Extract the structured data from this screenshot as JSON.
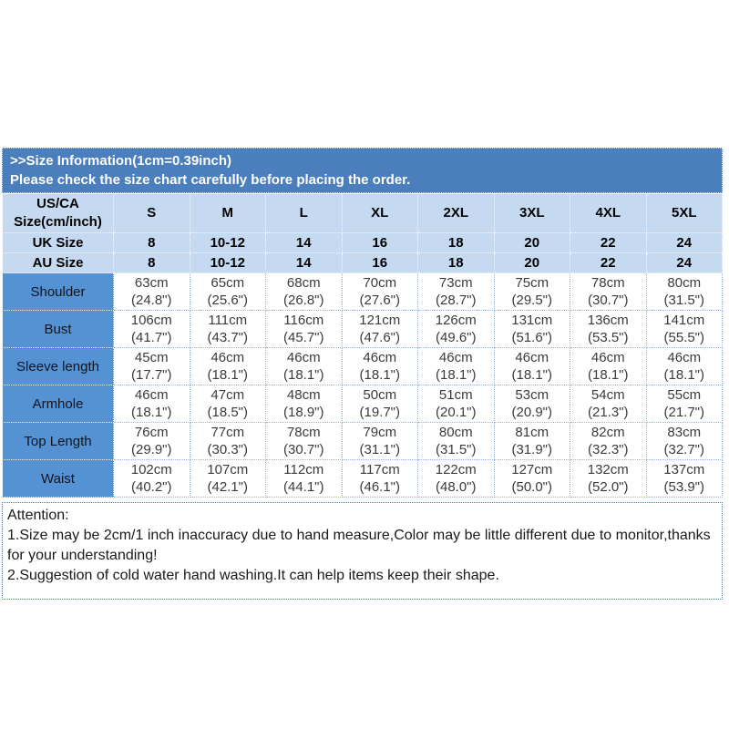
{
  "title": {
    "line1": ">>Size Information(1cm=0.39inch)",
    "line2": "Please check the size chart carefully before placing the order."
  },
  "table": {
    "corner_line1": "US/CA",
    "corner_line2": "Size(cm/inch)",
    "size_headers": [
      "S",
      "M",
      "L",
      "XL",
      "2XL",
      "3XL",
      "4XL",
      "5XL"
    ],
    "uk_label": "UK Size",
    "uk_values": [
      "8",
      "10-12",
      "14",
      "16",
      "18",
      "20",
      "22",
      "24"
    ],
    "au_label": "AU Size",
    "au_values": [
      "8",
      "10-12",
      "14",
      "16",
      "18",
      "20",
      "22",
      "24"
    ],
    "measurement_rows": [
      {
        "label": "Shoulder",
        "cm": [
          "63cm",
          "65cm",
          "68cm",
          "70cm",
          "73cm",
          "75cm",
          "78cm",
          "80cm"
        ],
        "inch": [
          "(24.8\")",
          "(25.6\")",
          "(26.8\")",
          "(27.6\")",
          "(28.7\")",
          "(29.5\")",
          "(30.7\")",
          "(31.5\")"
        ]
      },
      {
        "label": "Bust",
        "cm": [
          "106cm",
          "111cm",
          "116cm",
          "121cm",
          "126cm",
          "131cm",
          "136cm",
          "141cm"
        ],
        "inch": [
          "(41.7\")",
          "(43.7\")",
          "(45.7\")",
          "(47.6\")",
          "(49.6\")",
          "(51.6\")",
          "(53.5\")",
          "(55.5\")"
        ]
      },
      {
        "label": "Sleeve length",
        "cm": [
          "45cm",
          "46cm",
          "46cm",
          "46cm",
          "46cm",
          "46cm",
          "46cm",
          "46cm"
        ],
        "inch": [
          "(17.7\")",
          "(18.1\")",
          "(18.1\")",
          "(18.1\")",
          "(18.1\")",
          "(18.1\")",
          "(18.1\")",
          "(18.1\")"
        ]
      },
      {
        "label": "Armhole",
        "cm": [
          "46cm",
          "47cm",
          "48cm",
          "50cm",
          "51cm",
          "53cm",
          "54cm",
          "55cm"
        ],
        "inch": [
          "(18.1\")",
          "(18.5\")",
          "(18.9\")",
          "(19.7\")",
          "(20.1\")",
          "(20.9\")",
          "(21.3\")",
          "(21.7\")"
        ]
      },
      {
        "label": "Top Length",
        "cm": [
          "76cm",
          "77cm",
          "78cm",
          "79cm",
          "80cm",
          "81cm",
          "82cm",
          "83cm"
        ],
        "inch": [
          "(29.9\")",
          "(30.3\")",
          "(30.7\")",
          "(31.1\")",
          "(31.5\")",
          "(31.9\")",
          "(32.3\")",
          "(32.7\")"
        ]
      },
      {
        "label": "Waist",
        "cm": [
          "102cm",
          "107cm",
          "112cm",
          "117cm",
          "122cm",
          "127cm",
          "132cm",
          "137cm"
        ],
        "inch": [
          "(40.2\")",
          "(42.1\")",
          "(44.1\")",
          "(46.1\")",
          "(48.0\")",
          "(50.0\")",
          "(52.0\")",
          "(53.9\")"
        ]
      }
    ]
  },
  "attention": {
    "heading": "Attention:",
    "line1": "1.Size may be 2cm/1 inch inaccuracy due to hand measure,Color may be little different due to monitor,thanks for your understanding!",
    "line2": "2.Suggestion of cold water hand washing.It can help items keep their shape."
  },
  "colors": {
    "title_band_bg": "#4a7ebc",
    "header_cell_bg": "#c5d9f1",
    "row_label_bg": "#5592d4",
    "data_cell_bg": "#ffffff",
    "title_text": "#ffffff",
    "data_text": "#3b3b3b"
  }
}
